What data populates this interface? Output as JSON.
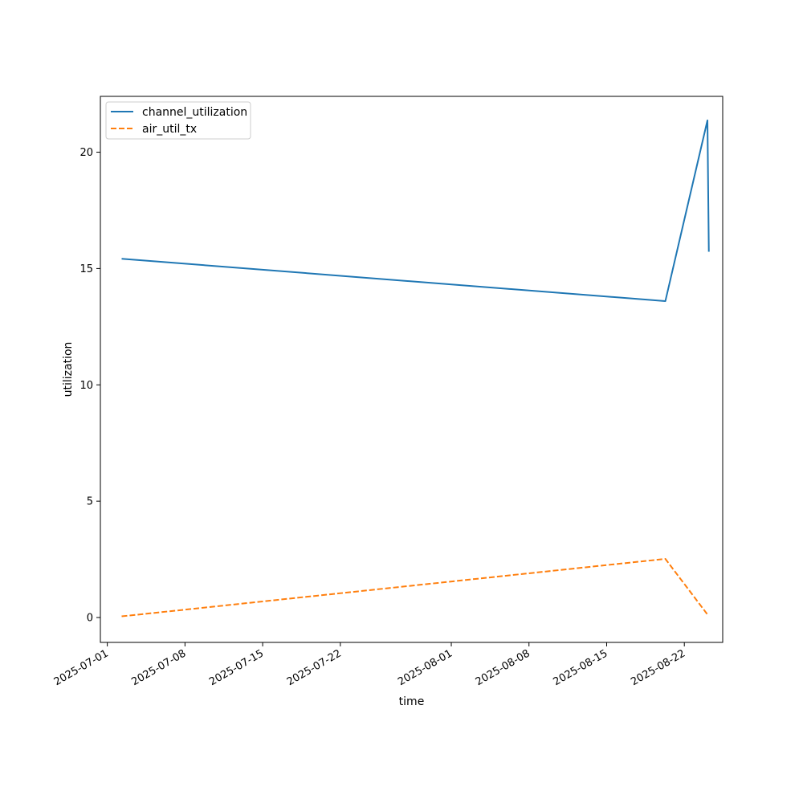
{
  "chart_data": {
    "type": "line",
    "title": "",
    "xlabel": "time",
    "ylabel": "utilization",
    "x_ticks": [
      "2025-07-01",
      "2025-07-08",
      "2025-07-15",
      "2025-07-22",
      "2025-08-01",
      "2025-08-08",
      "2025-08-15",
      "2025-08-22"
    ],
    "y_ticks": [
      0,
      5,
      10,
      15,
      20
    ],
    "xlim": [
      "2025-06-30T09:00",
      "2025-08-25T11:00"
    ],
    "ylim": [
      -1.07,
      22.4
    ],
    "grid": false,
    "legend": "upper-left",
    "series": [
      {
        "name": "channel_utilization",
        "color": "#1f77b4",
        "style": "solid",
        "points": [
          {
            "x": "2025-07-02T07:00",
            "y": 15.42
          },
          {
            "x": "2025-08-20T07:00",
            "y": 13.6
          },
          {
            "x": "2025-08-24T02:00",
            "y": 21.37
          },
          {
            "x": "2025-08-24T05:00",
            "y": 15.72
          }
        ]
      },
      {
        "name": "air_util_tx",
        "color": "#ff7f0e",
        "style": "dashed",
        "points": [
          {
            "x": "2025-07-02T07:00",
            "y": 0.05
          },
          {
            "x": "2025-08-20T07:00",
            "y": 2.52
          },
          {
            "x": "2025-08-24T02:00",
            "y": 0.13
          }
        ]
      }
    ]
  }
}
